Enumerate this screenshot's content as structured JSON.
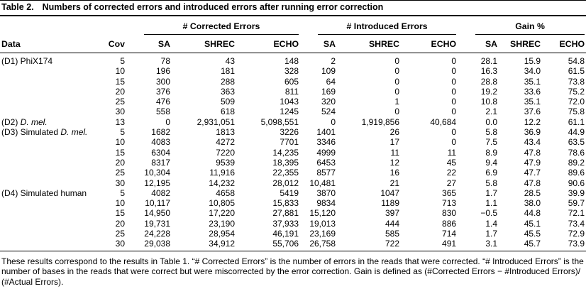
{
  "table": {
    "label": "Table 2.",
    "title": "Numbers of corrected errors and introduced errors after running error correction",
    "group_headers": [
      "# Corrected Errors",
      "# Introduced Errors",
      "Gain %"
    ],
    "data_header": "Data",
    "cov_header": "Cov",
    "sub_headers": [
      "SA",
      "SHREC",
      "ECHO",
      "SA",
      "SHREC",
      "ECHO",
      "SA",
      "SHREC",
      "ECHO"
    ],
    "rows": [
      {
        "prefix": "(D1) PhiX174",
        "italic": "",
        "cov": "5",
        "corrected": [
          "78",
          "43",
          "148"
        ],
        "introduced": [
          "2",
          "0",
          "0"
        ],
        "gain": [
          "28.1",
          "15.9",
          "54.8"
        ]
      },
      {
        "prefix": "",
        "italic": "",
        "cov": "10",
        "corrected": [
          "196",
          "181",
          "328"
        ],
        "introduced": [
          "109",
          "0",
          "0"
        ],
        "gain": [
          "16.3",
          "34.0",
          "61.5"
        ]
      },
      {
        "prefix": "",
        "italic": "",
        "cov": "15",
        "corrected": [
          "300",
          "288",
          "605"
        ],
        "introduced": [
          "64",
          "0",
          "0"
        ],
        "gain": [
          "28.8",
          "35.1",
          "73.8"
        ]
      },
      {
        "prefix": "",
        "italic": "",
        "cov": "20",
        "corrected": [
          "376",
          "363",
          "811"
        ],
        "introduced": [
          "169",
          "0",
          "0"
        ],
        "gain": [
          "19.2",
          "33.6",
          "75.2"
        ]
      },
      {
        "prefix": "",
        "italic": "",
        "cov": "25",
        "corrected": [
          "476",
          "509",
          "1043"
        ],
        "introduced": [
          "320",
          "1",
          "0"
        ],
        "gain": [
          "10.8",
          "35.1",
          "72.0"
        ]
      },
      {
        "prefix": "",
        "italic": "",
        "cov": "30",
        "corrected": [
          "558",
          "618",
          "1245"
        ],
        "introduced": [
          "524",
          "0",
          "0"
        ],
        "gain": [
          "2.1",
          "37.6",
          "75.8"
        ]
      },
      {
        "prefix": "(D2) ",
        "italic": "D. mel.",
        "cov": "13",
        "corrected": [
          "0",
          "2,931,051",
          "5,098,551"
        ],
        "introduced": [
          "0",
          "1,919,856",
          "40,684"
        ],
        "gain": [
          "0.0",
          "12.2",
          "61.1"
        ]
      },
      {
        "prefix": "(D3) Simulated ",
        "italic": "D. mel.",
        "cov": "5",
        "corrected": [
          "1682",
          "1813",
          "3226"
        ],
        "introduced": [
          "1401",
          "26",
          "0"
        ],
        "gain": [
          "5.8",
          "36.9",
          "44.9"
        ]
      },
      {
        "prefix": "",
        "italic": "",
        "cov": "10",
        "corrected": [
          "4083",
          "4272",
          "7701"
        ],
        "introduced": [
          "3346",
          "17",
          "0"
        ],
        "gain": [
          "7.5",
          "43.4",
          "63.5"
        ]
      },
      {
        "prefix": "",
        "italic": "",
        "cov": "15",
        "corrected": [
          "6304",
          "7220",
          "14,235"
        ],
        "introduced": [
          "4999",
          "11",
          "11"
        ],
        "gain": [
          "8.9",
          "47.8",
          "78.6"
        ]
      },
      {
        "prefix": "",
        "italic": "",
        "cov": "20",
        "corrected": [
          "8317",
          "9539",
          "18,395"
        ],
        "introduced": [
          "6453",
          "12",
          "45"
        ],
        "gain": [
          "9.4",
          "47.9",
          "89.2"
        ]
      },
      {
        "prefix": "",
        "italic": "",
        "cov": "25",
        "corrected": [
          "10,304",
          "11,916",
          "22,355"
        ],
        "introduced": [
          "8577",
          "16",
          "22"
        ],
        "gain": [
          "6.9",
          "47.7",
          "89.6"
        ]
      },
      {
        "prefix": "",
        "italic": "",
        "cov": "30",
        "corrected": [
          "12,195",
          "14,232",
          "28,012"
        ],
        "introduced": [
          "10,481",
          "21",
          "27"
        ],
        "gain": [
          "5.8",
          "47.8",
          "90.6"
        ]
      },
      {
        "prefix": "(D4) Simulated human",
        "italic": "",
        "cov": "5",
        "corrected": [
          "4082",
          "4658",
          "5419"
        ],
        "introduced": [
          "3870",
          "1047",
          "365"
        ],
        "gain": [
          "1.7",
          "28.5",
          "39.9"
        ]
      },
      {
        "prefix": "",
        "italic": "",
        "cov": "10",
        "corrected": [
          "10,117",
          "10,805",
          "15,833"
        ],
        "introduced": [
          "9834",
          "1189",
          "713"
        ],
        "gain": [
          "1.1",
          "38.0",
          "59.7"
        ]
      },
      {
        "prefix": "",
        "italic": "",
        "cov": "15",
        "corrected": [
          "14,950",
          "17,220",
          "27,881"
        ],
        "introduced": [
          "15,120",
          "397",
          "830"
        ],
        "gain": [
          "−0.5",
          "44.8",
          "72.1"
        ]
      },
      {
        "prefix": "",
        "italic": "",
        "cov": "20",
        "corrected": [
          "19,731",
          "23,190",
          "37,933"
        ],
        "introduced": [
          "19,013",
          "444",
          "886"
        ],
        "gain": [
          "1.4",
          "45.1",
          "73.4"
        ]
      },
      {
        "prefix": "",
        "italic": "",
        "cov": "25",
        "corrected": [
          "24,228",
          "28,954",
          "46,191"
        ],
        "introduced": [
          "23,169",
          "585",
          "714"
        ],
        "gain": [
          "1.7",
          "45.5",
          "72.9"
        ]
      },
      {
        "prefix": "",
        "italic": "",
        "cov": "30",
        "corrected": [
          "29,038",
          "34,912",
          "55,706"
        ],
        "introduced": [
          "26,758",
          "722",
          "491"
        ],
        "gain": [
          "3.1",
          "45.7",
          "73.9"
        ]
      }
    ]
  },
  "footnote": "These results correspond to the results in Table 1. “# Corrected Errors” is the number of errors in the reads that were corrected. “# Introduced Errors” is the number of bases in the reads that were correct but were miscorrected by the error correction. Gain is defined as (#Corrected Errors − #Introduced Errors)/ (#Actual Errors)."
}
